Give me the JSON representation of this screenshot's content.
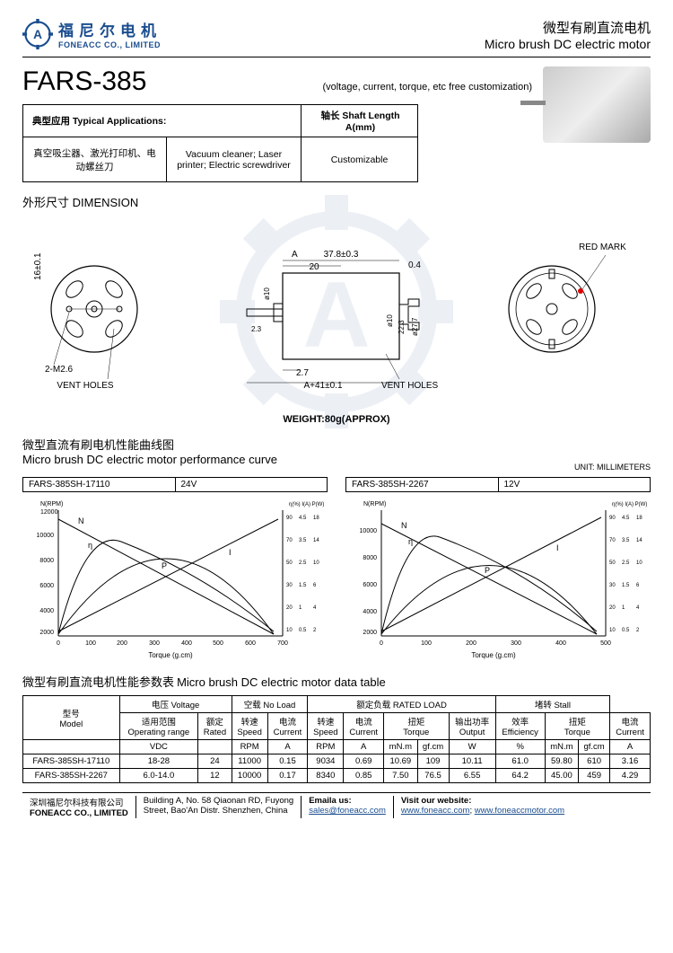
{
  "header": {
    "logo_cn": "福尼尔电机",
    "logo_en": "FONEACC CO., LIMITED",
    "right_cn": "微型有刷直流电机",
    "right_en": "Micro brush DC electric motor"
  },
  "title": {
    "model": "FARS-385",
    "sub": "(voltage, current, torque, etc free customization)"
  },
  "app_table": {
    "hdr_app": "典型应用 Typical Applications:",
    "hdr_shaft": "轴长 Shaft Length A(mm)",
    "cn_apps": "真空吸尘器、激光打印机、电动螺丝刀",
    "en_apps": "Vacuum cleaner; Laser printer; Electric screwdriver",
    "shaft_val": "Customizable"
  },
  "dimension": {
    "title_cn": "外形尺寸 DIMENSION",
    "weight": "WEIGHT:80g(APPROX)",
    "unit": "UNIT: MILLIMETERS",
    "labels": {
      "vent": "VENT HOLES",
      "redmark": "RED MARK",
      "m26": "2-M2.6",
      "a": "A",
      "d378": "37.8±0.3",
      "d20": "20",
      "d04": "0.4",
      "d10": "ø10",
      "d23": "2.3",
      "d27": "2.7",
      "d223": "22.3",
      "d277": "ø27.7",
      "a41": "A+41±0.1",
      "d16": "16±0.1"
    }
  },
  "curves": {
    "title_cn": "微型直流有刷电机性能曲线图",
    "title_en": "Micro brush DC electric motor performance curve",
    "chart1": {
      "model": "FARS-385SH-17110",
      "voltage": "24V",
      "axis_y1_label": "N(RPM)",
      "axis_y1_max": "12000",
      "axis_y2_labels": "η(%) I(A) P(W)",
      "xlabel": "Torque (g.cm)",
      "xmax": 700,
      "bg": "#ffffff",
      "line": "#000000"
    },
    "chart2": {
      "model": "FARS-385SH-2267",
      "voltage": "12V",
      "axis_y1_label": "N(RPM)",
      "xlabel": "Torque (g.cm)",
      "xmax": 500,
      "bg": "#ffffff",
      "line": "#000000"
    }
  },
  "datatable": {
    "title_cn": "微型有刷直流电机性能参数表",
    "title_en": "Micro brush DC electric motor data table",
    "hdr": {
      "model_cn": "型号",
      "model_en": "Model",
      "voltage": "电压 Voltage",
      "noload": "空载 No Load",
      "rated": "额定负载 RATED LOAD",
      "stall": "堵转 Stall",
      "range_cn": "适用范围",
      "range_en": "Operating range",
      "rated_cn": "额定",
      "rated_en": "Rated",
      "speed_cn": "转速",
      "speed_en": "Speed",
      "current_cn": "电流",
      "current_en": "Current",
      "torque_cn": "扭矩",
      "torque_en": "Torque",
      "output_cn": "输出功率",
      "output_en": "Output",
      "eff_cn": "效率",
      "eff_en": "Efficiency",
      "vdc": "VDC",
      "rpm": "RPM",
      "a": "A",
      "mnm": "mN.m",
      "gfcm": "gf.cm",
      "w": "W",
      "pct": "%"
    },
    "rows": [
      {
        "model": "FARS-385SH-17110",
        "range": "18-28",
        "rated": "24",
        "nl_rpm": "11000",
        "nl_a": "0.15",
        "rl_rpm": "9034",
        "rl_a": "0.69",
        "t_mnm": "10.69",
        "t_gf": "109",
        "out": "10.11",
        "eff": "61.0",
        "st_mnm": "59.80",
        "st_gf": "610",
        "st_a": "3.16"
      },
      {
        "model": "FARS-385SH-2267",
        "range": "6.0-14.0",
        "rated": "12",
        "nl_rpm": "10000",
        "nl_a": "0.17",
        "rl_rpm": "8340",
        "rl_a": "0.85",
        "t_mnm": "7.50",
        "t_gf": "76.5",
        "out": "6.55",
        "eff": "64.2",
        "st_mnm": "45.00",
        "st_gf": "459",
        "st_a": "4.29"
      }
    ]
  },
  "footer": {
    "company_cn": "深圳福尼尔科技有限公司",
    "company_en": "FONEACC CO., LIMITED",
    "addr1": "Building A, No. 58 Qiaonan RD, Fuyong",
    "addr2": "Street, Bao'An Distr. Shenzhen, China",
    "email_lbl": "Emaila us:",
    "email": "sales@foneacc.com",
    "web_lbl": "Visit our website:",
    "web1": "www.foneacc.com",
    "web2": "www.foneaccmotor.com"
  },
  "colors": {
    "brand": "#1a4d8f",
    "line": "#000000",
    "bg": "#ffffff",
    "watermark": "#1a4d8f"
  }
}
